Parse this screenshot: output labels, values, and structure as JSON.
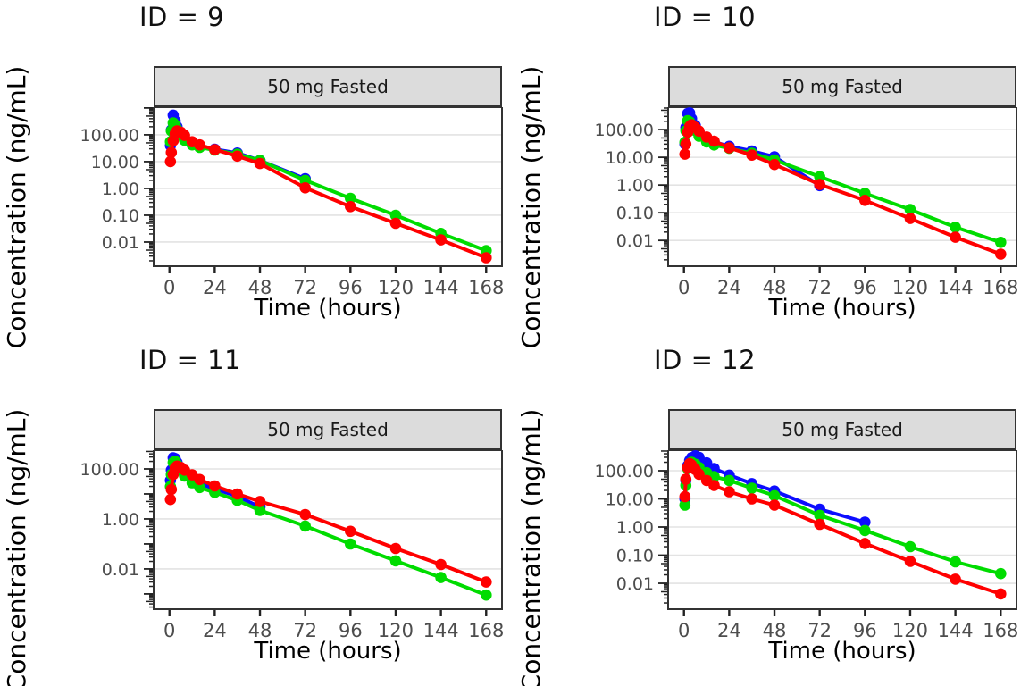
{
  "figure": {
    "description": "Faceted semi-log concentration-time profiles, 2x2 grid by subject ID",
    "x_tick_values": [
      0,
      24,
      48,
      72,
      96,
      120,
      144,
      168
    ],
    "colors": {
      "series_blue": "#0d0dff",
      "series_green": "#00dc00",
      "series_red": "#ff0000",
      "strip_background": "#dcdcdc",
      "panel_border": "#333333",
      "gridline": "#e3e3e3",
      "tick": "#222222",
      "tick_label": "#4d4d4d"
    }
  },
  "chart_data": [
    {
      "type": "line",
      "title": "ID = 9",
      "strip": "50 mg Fasted",
      "xlabel": "Time (hours)",
      "ylabel": "Concentration (ng/mL)",
      "x_ticks": [
        0,
        24,
        48,
        72,
        96,
        120,
        144,
        168
      ],
      "xlim": [
        -8.4,
        176.4
      ],
      "ylim_log": [
        3.03,
        -2.9
      ],
      "y_ticks": [
        {
          "log": 2,
          "label": "100.00"
        },
        {
          "log": 1,
          "label": "10.00"
        },
        {
          "log": 0,
          "label": "1.00"
        },
        {
          "log": -1,
          "label": "0.10"
        },
        {
          "log": -2,
          "label": "0.01"
        }
      ],
      "series": [
        {
          "name": "blue",
          "color": "#0d0dff",
          "t": [
            0.5,
            1,
            2,
            3,
            4,
            6,
            8,
            12,
            16,
            24,
            36,
            48,
            72
          ],
          "c": [
            40,
            150,
            540,
            330,
            200,
            120,
            70,
            48,
            40,
            29,
            21,
            11,
            2.3
          ]
        },
        {
          "name": "green",
          "color": "#00dc00",
          "t": [
            0.5,
            1,
            2,
            3,
            4,
            6,
            8,
            12,
            16,
            24,
            36,
            48,
            72,
            96,
            120,
            144,
            168
          ],
          "c": [
            55,
            140,
            280,
            230,
            160,
            95,
            62,
            42,
            34,
            27,
            19,
            11,
            2.0,
            0.43,
            0.1,
            0.021,
            0.0048
          ]
        },
        {
          "name": "red",
          "color": "#ff0000",
          "t": [
            0.5,
            1,
            2,
            3,
            4,
            6,
            8,
            12,
            16,
            24,
            36,
            48,
            72,
            96,
            120,
            144,
            168
          ],
          "c": [
            10,
            22,
            60,
            110,
            140,
            125,
            95,
            55,
            42,
            28,
            16,
            8.5,
            1.05,
            0.21,
            0.05,
            0.012,
            0.0026
          ]
        }
      ]
    },
    {
      "type": "line",
      "title": "ID = 10",
      "strip": "50 mg Fasted",
      "xlabel": "Time (hours)",
      "ylabel": "Concentration (ng/mL)",
      "x_ticks": [
        0,
        24,
        48,
        72,
        96,
        120,
        144,
        168
      ],
      "xlim": [
        -8.4,
        176.4
      ],
      "ylim_log": [
        2.81,
        -2.93
      ],
      "y_ticks": [
        {
          "log": 2,
          "label": "100.00"
        },
        {
          "log": 1,
          "label": "10.00"
        },
        {
          "log": 0,
          "label": "1.00"
        },
        {
          "log": -1,
          "label": "0.10"
        },
        {
          "log": -2,
          "label": "0.01"
        }
      ],
      "series": [
        {
          "name": "blue",
          "color": "#0d0dff",
          "t": [
            0.5,
            1,
            2,
            3,
            4,
            6,
            8,
            12,
            16,
            24,
            36,
            48,
            72
          ],
          "c": [
            30,
            120,
            380,
            400,
            250,
            140,
            82,
            50,
            36,
            25,
            17,
            10.5,
            0.95
          ]
        },
        {
          "name": "green",
          "color": "#00dc00",
          "t": [
            0.5,
            1,
            2,
            3,
            4,
            6,
            8,
            12,
            16,
            24,
            36,
            48,
            72,
            96,
            120,
            144,
            168
          ],
          "c": [
            35,
            90,
            210,
            190,
            150,
            92,
            58,
            36,
            28,
            21,
            14,
            8,
            2.0,
            0.5,
            0.13,
            0.03,
            0.0085
          ]
        },
        {
          "name": "red",
          "color": "#ff0000",
          "t": [
            0.5,
            1,
            2,
            3,
            4,
            6,
            8,
            12,
            16,
            24,
            36,
            48,
            72,
            96,
            120,
            144,
            168
          ],
          "c": [
            13,
            30,
            80,
            130,
            150,
            120,
            88,
            54,
            38,
            22,
            12,
            5.5,
            1.05,
            0.28,
            0.062,
            0.013,
            0.0032
          ]
        }
      ]
    },
    {
      "type": "line",
      "title": "ID = 11",
      "strip": "50 mg Fasted",
      "xlabel": "Time (hours)",
      "ylabel": "Concentration (ng/mL)",
      "x_ticks": [
        0,
        24,
        48,
        72,
        96,
        120,
        144,
        168
      ],
      "xlim": [
        -8.4,
        176.4
      ],
      "ylim_log": [
        2.75,
        -3.61
      ],
      "y_ticks": [
        {
          "log": 2,
          "label": "100.00"
        },
        {
          "log": 0,
          "label": "1.00"
        },
        {
          "log": -2,
          "label": "0.01"
        }
      ],
      "series": [
        {
          "name": "blue",
          "color": "#0d0dff",
          "t": [
            0.5,
            1,
            2,
            3,
            4,
            6,
            8,
            12,
            16,
            24,
            36,
            48
          ],
          "c": [
            35,
            90,
            280,
            260,
            180,
            110,
            68,
            38,
            26,
            16,
            8,
            3.0
          ]
        },
        {
          "name": "green",
          "color": "#00dc00",
          "t": [
            0.5,
            1,
            2,
            3,
            4,
            6,
            8,
            12,
            16,
            24,
            36,
            48,
            72,
            96,
            120,
            144,
            168
          ],
          "c": [
            20,
            60,
            180,
            200,
            150,
            88,
            52,
            28,
            18,
            11.5,
            5.5,
            2.2,
            0.52,
            0.1,
            0.021,
            0.0045,
            0.0009
          ]
        },
        {
          "name": "red",
          "color": "#ff0000",
          "t": [
            0.5,
            1,
            2,
            3,
            4,
            6,
            8,
            12,
            16,
            24,
            36,
            48,
            72,
            96,
            120,
            144,
            168
          ],
          "c": [
            6,
            15,
            60,
            110,
            130,
            115,
            90,
            58,
            38,
            21,
            10,
            5.0,
            1.5,
            0.32,
            0.066,
            0.015,
            0.003
          ]
        }
      ]
    },
    {
      "type": "line",
      "title": "ID = 12",
      "strip": "50 mg Fasted",
      "xlabel": "Time (hours)",
      "ylabel": "Concentration (ng/mL)",
      "x_ticks": [
        0,
        24,
        48,
        72,
        96,
        120,
        144,
        168
      ],
      "xlim": [
        -8.4,
        176.4
      ],
      "ylim_log": [
        2.73,
        -2.92
      ],
      "y_ticks": [
        {
          "log": 2,
          "label": "100.00"
        },
        {
          "log": 1,
          "label": "10.00"
        },
        {
          "log": 0,
          "label": "1.00"
        },
        {
          "log": -1,
          "label": "0.10"
        },
        {
          "log": -2,
          "label": "0.01"
        }
      ],
      "series": [
        {
          "name": "blue",
          "color": "#0d0dff",
          "t": [
            0.5,
            1,
            2,
            3,
            4,
            6,
            8,
            12,
            16,
            24,
            36,
            48,
            72,
            96
          ],
          "c": [
            10,
            45,
            150,
            230,
            290,
            340,
            300,
            190,
            120,
            70,
            35,
            19,
            4.3,
            1.5
          ]
        },
        {
          "name": "green",
          "color": "#00dc00",
          "t": [
            0.5,
            1,
            2,
            3,
            4,
            6,
            8,
            12,
            16,
            24,
            36,
            48,
            72,
            96,
            120,
            144,
            168
          ],
          "c": [
            6,
            30,
            120,
            180,
            200,
            170,
            130,
            85,
            62,
            45,
            24,
            13,
            2.6,
            0.75,
            0.2,
            0.058,
            0.022
          ]
        },
        {
          "name": "red",
          "color": "#ff0000",
          "t": [
            0.5,
            1,
            2,
            3,
            4,
            6,
            8,
            12,
            16,
            24,
            36,
            48,
            72,
            96,
            120,
            144,
            168
          ],
          "c": [
            12,
            50,
            130,
            180,
            160,
            110,
            75,
            45,
            30,
            18,
            10,
            6.0,
            1.25,
            0.26,
            0.06,
            0.014,
            0.0042
          ]
        }
      ]
    }
  ]
}
